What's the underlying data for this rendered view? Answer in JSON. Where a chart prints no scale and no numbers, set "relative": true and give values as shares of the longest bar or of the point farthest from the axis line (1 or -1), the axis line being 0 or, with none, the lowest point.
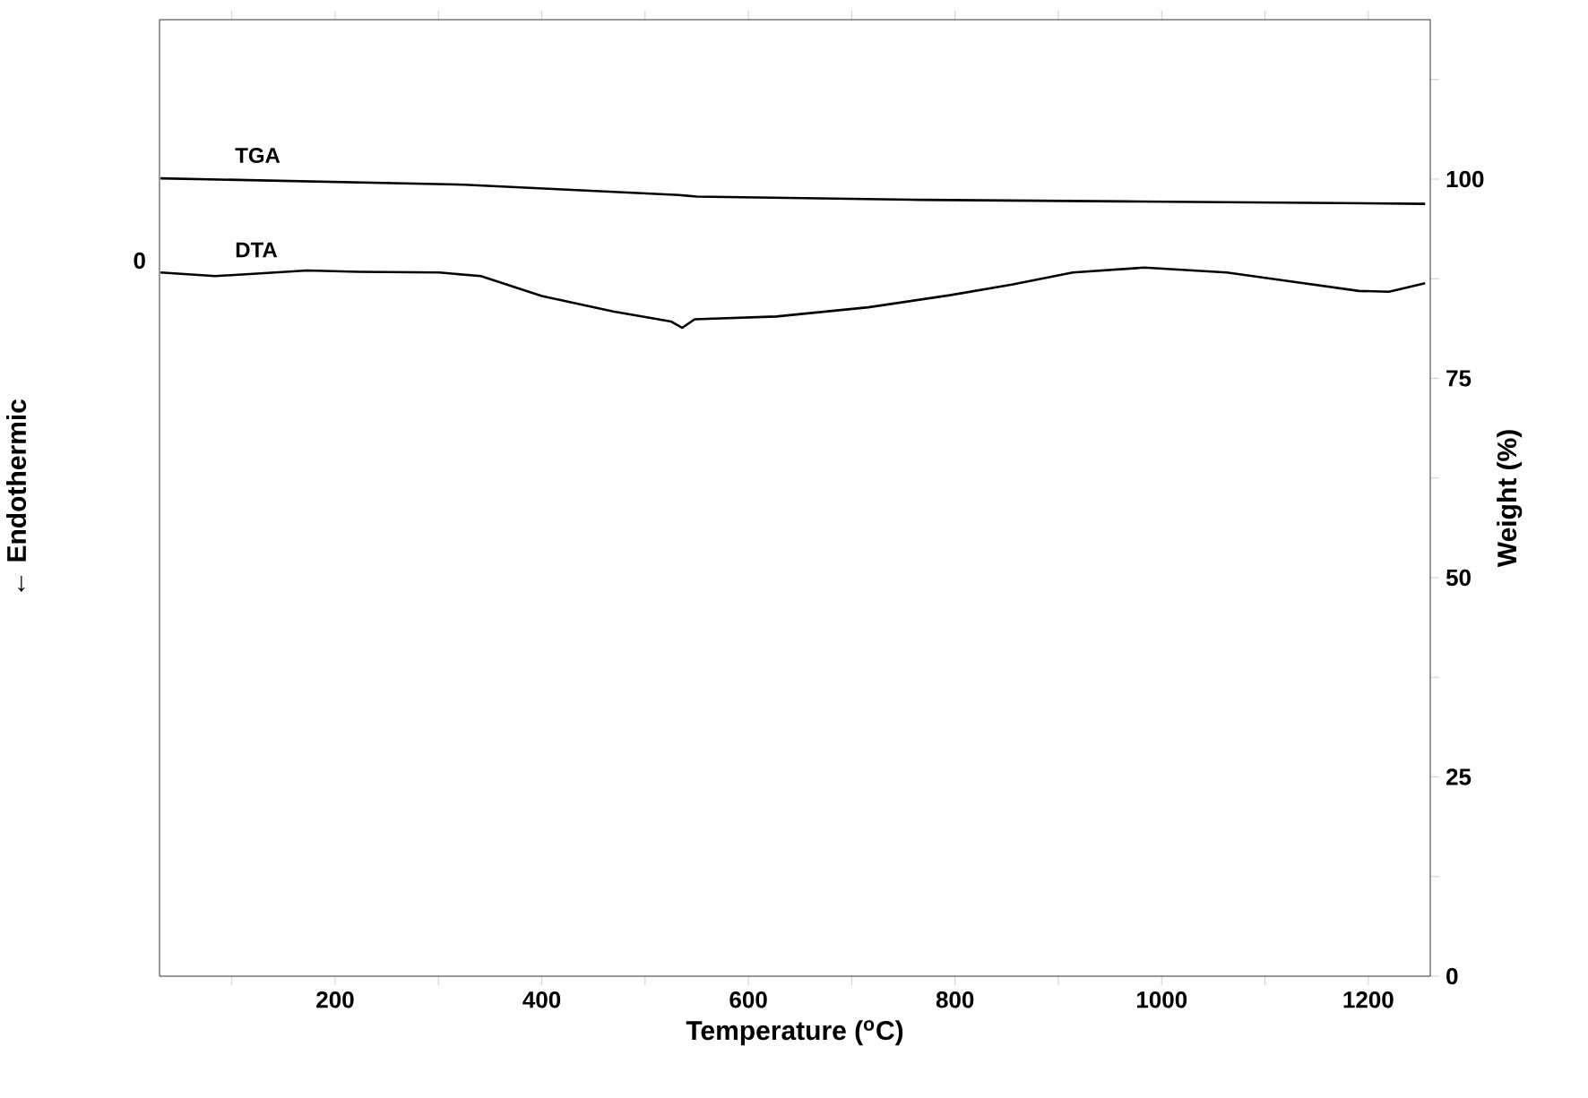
{
  "chart_data": [
    {
      "type": "line",
      "xlabel": "Temperature ($^{o}$C)",
      "ylabel": "← Endothermic",
      "relative": true,
      "annotations": [
        "0"
      ],
      "xlim": [
        30,
        1260
      ],
      "xticks": [
        {
          "value": 100,
          "label": null
        },
        200,
        {
          "value": 300,
          "label": null
        },
        400,
        {
          "value": 500,
          "label": null
        },
        600,
        {
          "value": 700,
          "label": null
        },
        800,
        {
          "value": 900,
          "label": null
        },
        1000,
        {
          "value": 1100,
          "label": null
        },
        1200
      ],
      "series": [
        {
          "name": "DTA",
          "color": "#000000",
          "x": [
            31,
            84,
            173,
            223,
            301,
            341,
            400,
            469,
            509,
            525,
            536,
            548,
            627,
            716,
            795,
            855,
            914,
            983,
            1063,
            1122,
            1191,
            1220,
            1255
          ],
          "values": [
            0.993,
            0.988,
            0.996,
            0.994,
            0.993,
            0.988,
            0.96,
            0.938,
            0.928,
            0.924,
            0.915,
            0.927,
            0.931,
            0.944,
            0.961,
            0.976,
            0.993,
            1,
            0.993,
            0.981,
            0.967,
            0.966,
            0.978
          ]
        }
      ]
    },
    {
      "type": "line",
      "ylabel": "Weight (%)",
      "tick_labels": "y",
      "xlim": [
        30,
        1260
      ],
      "ylim": [
        0,
        120
      ],
      "yticks": [
        0,
        {
          "value": 12.5,
          "label": null
        },
        25,
        {
          "value": 37.5,
          "label": null
        },
        50,
        {
          "value": 62.5,
          "label": null
        },
        75,
        {
          "value": 87.5,
          "label": null
        },
        100,
        {
          "value": 112.5,
          "label": null
        }
      ],
      "series": [
        {
          "name": "TGA",
          "color": "#000000",
          "x": [
            31,
            325,
            533,
            550,
            766,
            964,
            1255
          ],
          "values": [
            100.1,
            99.3,
            98.0,
            97.8,
            97.4,
            97.2,
            96.9
          ]
        }
      ]
    }
  ]
}
